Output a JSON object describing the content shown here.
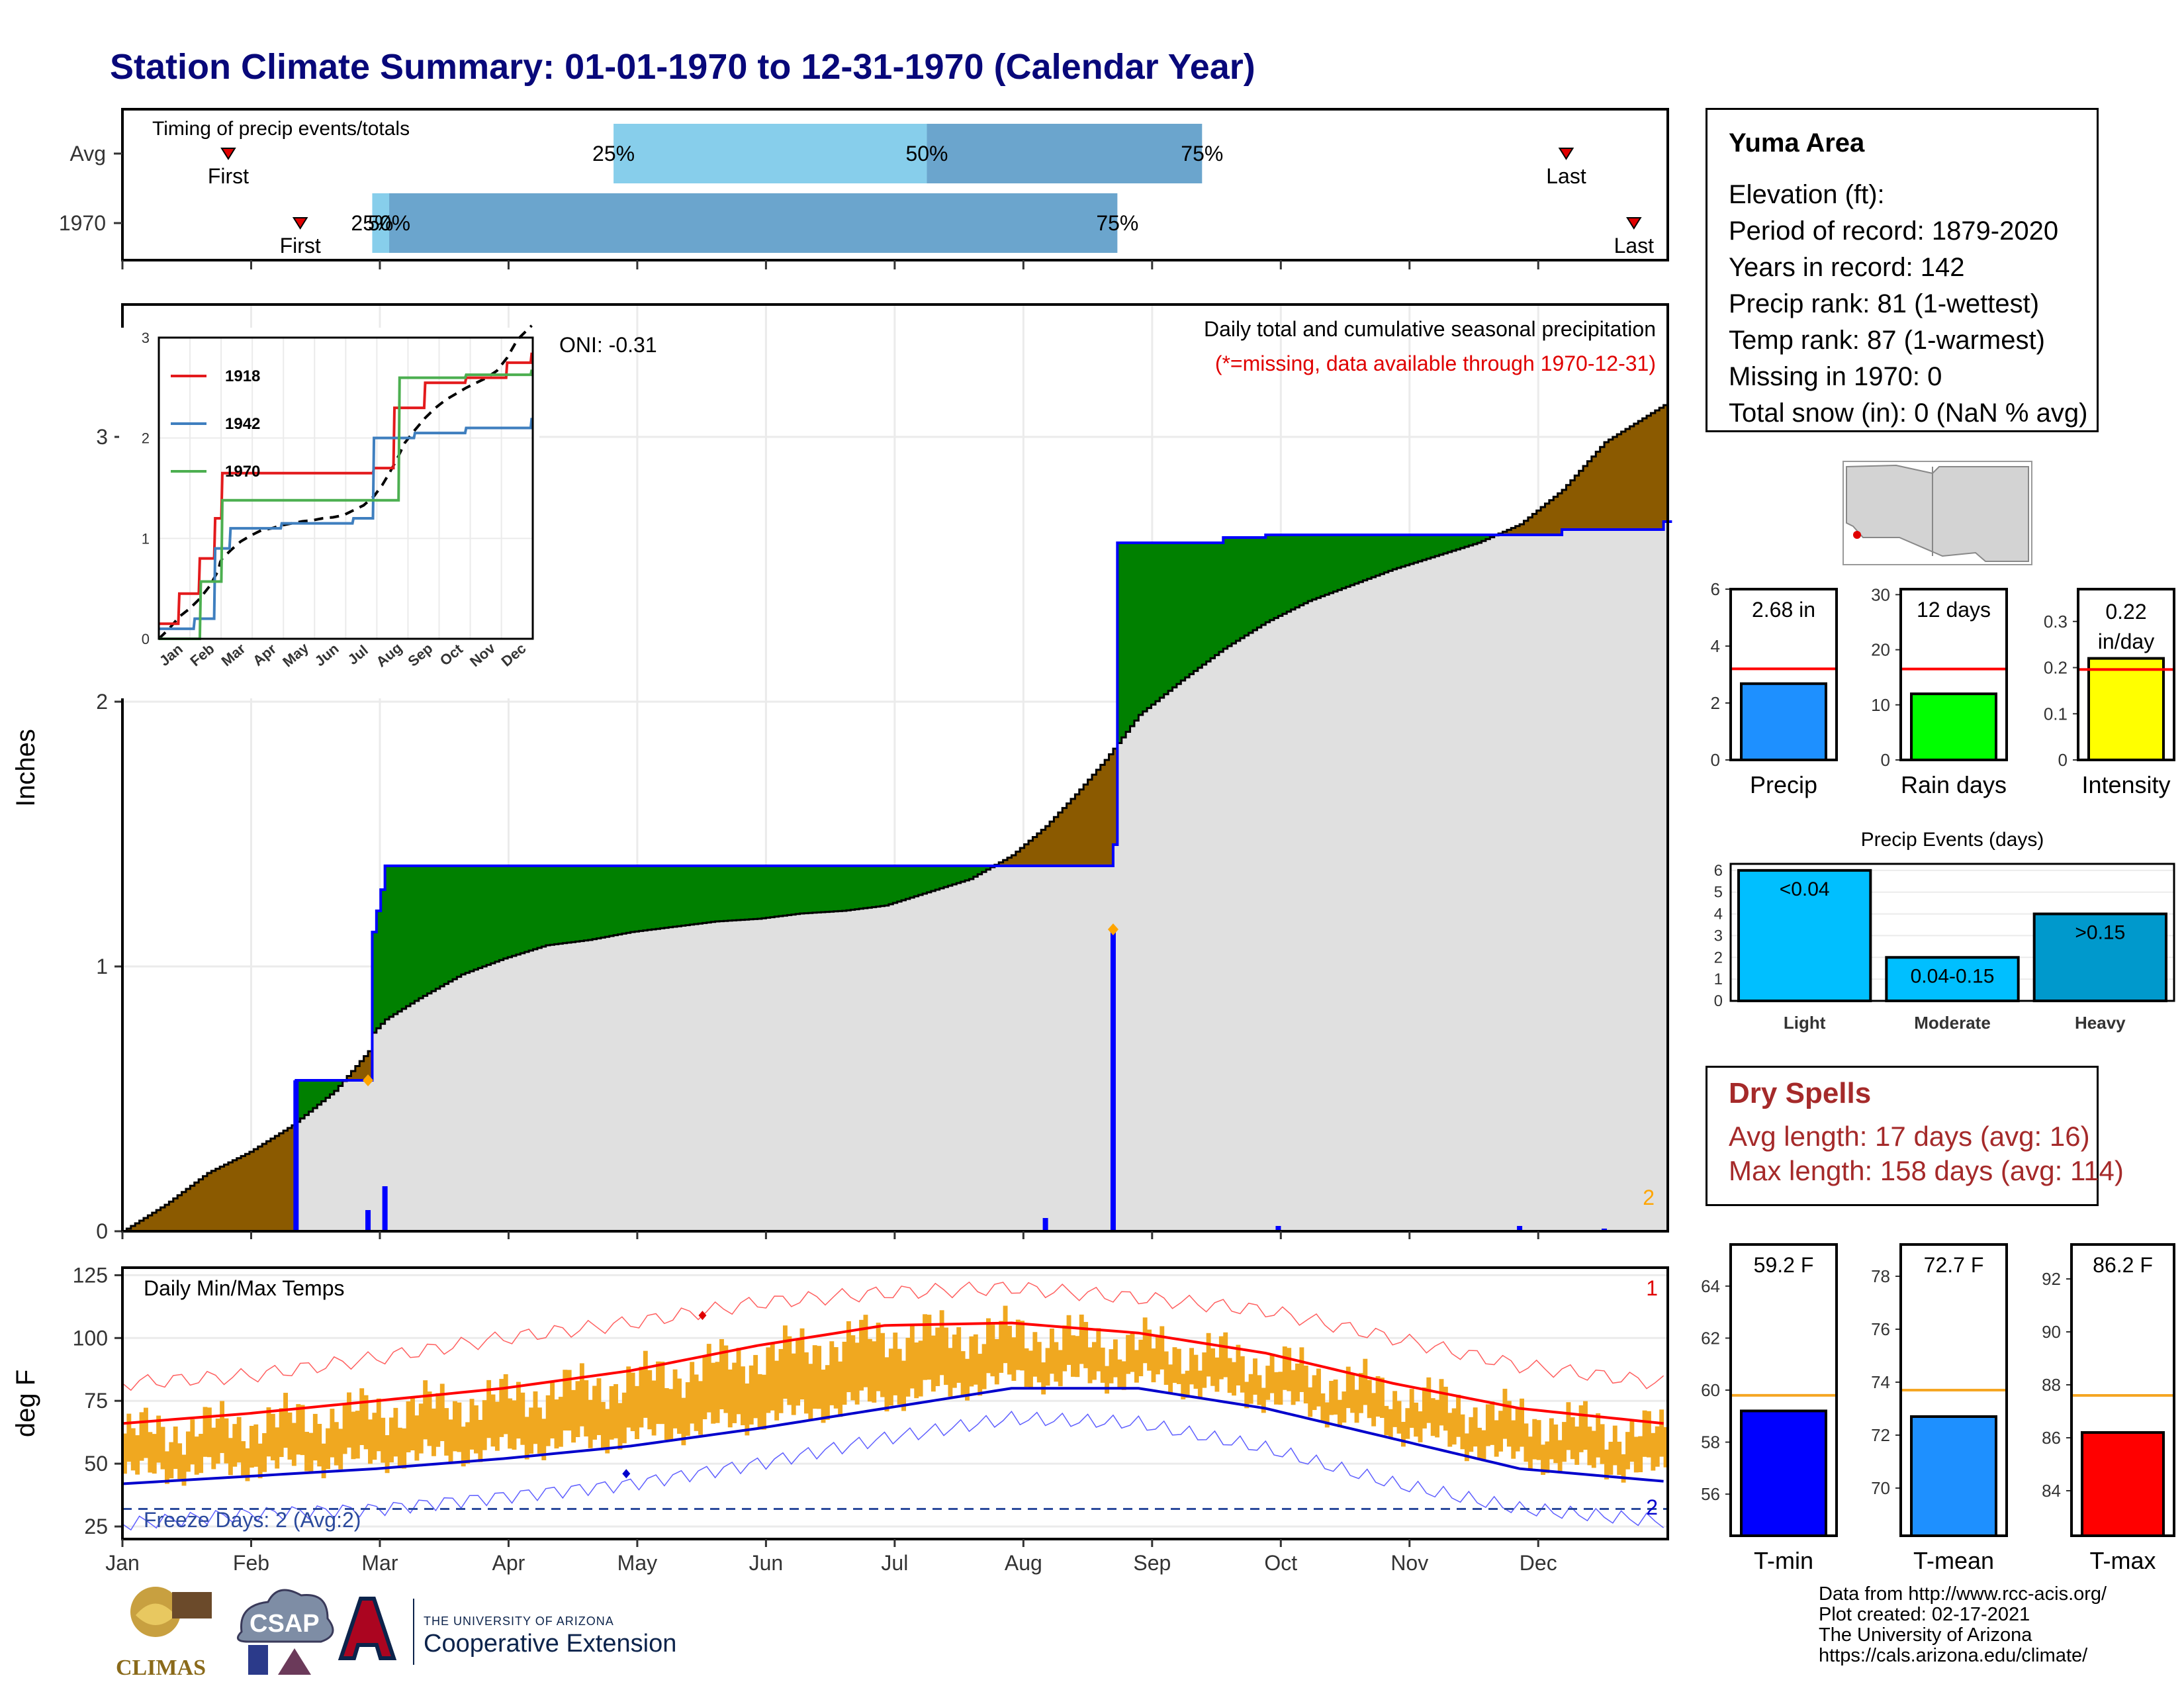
{
  "title": "Station Climate Summary: 01-01-1970 to 12-31-1970 (Calendar Year)",
  "timing": {
    "panel_title": "Timing of precip events/totals",
    "rows": [
      {
        "label": "Avg",
        "first_doy": 25,
        "last_doy": 341,
        "p25": 116,
        "p50": 190,
        "p75": 255,
        "labels": {
          "p25": "25%",
          "p50": "50%",
          "p75": "75%",
          "first": "First",
          "last": "Last"
        }
      },
      {
        "label": "1970",
        "first_doy": 42,
        "last_doy": 357,
        "p25": 59,
        "p50": 63,
        "p75": 235,
        "labels": {
          "p25": "25%",
          "p50": "50%",
          "p75": "75%",
          "first": "First",
          "last": "Last"
        }
      }
    ]
  },
  "chart_data": [
    {
      "type": "area",
      "name": "precip",
      "title": "Daily total and cumulative seasonal precipitation",
      "subtitle": "(*=missing, data available through 1970-12-31)",
      "ylabel": "Inches",
      "ylim": [
        0,
        3.5
      ],
      "yticks": [
        0,
        1,
        2,
        3
      ],
      "oni": "ONI: -0.31",
      "corner_count": "2",
      "months": [
        "Jan",
        "Feb",
        "Mar",
        "Apr",
        "May",
        "Jun",
        "Jul",
        "Aug",
        "Sep",
        "Oct",
        "Nov",
        "Dec"
      ],
      "avg_cumulative": [
        [
          0,
          0
        ],
        [
          10,
          0.1
        ],
        [
          20,
          0.22
        ],
        [
          30,
          0.3
        ],
        [
          40,
          0.4
        ],
        [
          50,
          0.53
        ],
        [
          58,
          0.68
        ],
        [
          59,
          0.75
        ],
        [
          62,
          0.8
        ],
        [
          70,
          0.88
        ],
        [
          80,
          0.97
        ],
        [
          90,
          1.03
        ],
        [
          100,
          1.08
        ],
        [
          110,
          1.1
        ],
        [
          120,
          1.13
        ],
        [
          130,
          1.15
        ],
        [
          140,
          1.17
        ],
        [
          150,
          1.18
        ],
        [
          160,
          1.2
        ],
        [
          170,
          1.21
        ],
        [
          180,
          1.23
        ],
        [
          190,
          1.28
        ],
        [
          200,
          1.33
        ],
        [
          210,
          1.42
        ],
        [
          218,
          1.53
        ],
        [
          225,
          1.65
        ],
        [
          232,
          1.78
        ],
        [
          240,
          1.95
        ],
        [
          250,
          2.08
        ],
        [
          260,
          2.2
        ],
        [
          270,
          2.3
        ],
        [
          280,
          2.38
        ],
        [
          290,
          2.44
        ],
        [
          300,
          2.5
        ],
        [
          310,
          2.55
        ],
        [
          320,
          2.6
        ],
        [
          330,
          2.67
        ],
        [
          340,
          2.8
        ],
        [
          350,
          2.98
        ],
        [
          364,
          3.12
        ]
      ],
      "cum_1970": [
        [
          0,
          0
        ],
        [
          41,
          0
        ],
        [
          41,
          0.57
        ],
        [
          58,
          0.57
        ],
        [
          59,
          1.13
        ],
        [
          60,
          1.21
        ],
        [
          61,
          1.29
        ],
        [
          62,
          1.38
        ],
        [
          210,
          1.38
        ],
        [
          220,
          1.38
        ],
        [
          234,
          1.46
        ],
        [
          235,
          2.6
        ],
        [
          260,
          2.62
        ],
        [
          270,
          2.63
        ],
        [
          300,
          2.63
        ],
        [
          330,
          2.63
        ],
        [
          340,
          2.65
        ],
        [
          364,
          2.68
        ]
      ],
      "daily_1970": [
        [
          41,
          0.57
        ],
        [
          58,
          0.08
        ],
        [
          62,
          0.17
        ],
        [
          218,
          0.05
        ],
        [
          234,
          1.14
        ],
        [
          273,
          0.02
        ],
        [
          330,
          0.02
        ],
        [
          350,
          0.01
        ]
      ],
      "series_colors": {
        "avg": "#000000",
        "year": "#0000ff",
        "above": "#008000",
        "below": "#8b5a00",
        "fill": "#e0e0e0"
      }
    },
    {
      "type": "line",
      "name": "inset_cumulative",
      "series": [
        {
          "name": "1918",
          "color": "#e31a1c",
          "values": [
            [
              0,
              0.15
            ],
            [
              20,
              0.45
            ],
            [
              40,
              0.8
            ],
            [
              55,
              1.2
            ],
            [
              62,
              1.65
            ],
            [
              120,
              1.65
            ],
            [
              210,
              1.7
            ],
            [
              230,
              2.3
            ],
            [
              260,
              2.55
            ],
            [
              300,
              2.6
            ],
            [
              340,
              2.75
            ],
            [
              364,
              2.85
            ]
          ]
        },
        {
          "name": "1942",
          "color": "#3f7fbf",
          "values": [
            [
              0,
              0.1
            ],
            [
              35,
              0.2
            ],
            [
              55,
              0.9
            ],
            [
              70,
              1.1
            ],
            [
              120,
              1.15
            ],
            [
              190,
              1.2
            ],
            [
              210,
              2.0
            ],
            [
              250,
              2.05
            ],
            [
              300,
              2.1
            ],
            [
              364,
              2.2
            ]
          ]
        },
        {
          "name": "1970",
          "color": "#4caf50",
          "values": [
            [
              0,
              0
            ],
            [
              41,
              0
            ],
            [
              41,
              0.57
            ],
            [
              58,
              0.57
            ],
            [
              62,
              1.38
            ],
            [
              220,
              1.38
            ],
            [
              235,
              2.6
            ],
            [
              300,
              2.63
            ],
            [
              364,
              2.68
            ]
          ]
        }
      ],
      "avg_line_color": "#000000",
      "ylim": [
        0,
        3
      ],
      "yticks": [
        0,
        1,
        2,
        3
      ],
      "xticks": [
        "Jan",
        "Feb",
        "Mar",
        "Apr",
        "May",
        "Jun",
        "Jul",
        "Aug",
        "Sep",
        "Oct",
        "Nov",
        "Dec"
      ]
    },
    {
      "type": "line",
      "name": "temps",
      "title": "Daily Min/Max Temps",
      "ylabel": "deg F",
      "ylim": [
        20,
        128
      ],
      "yticks": [
        25,
        50,
        75,
        100,
        125
      ],
      "avg_max": [
        [
          0,
          66
        ],
        [
          30,
          70
        ],
        [
          60,
          75
        ],
        [
          90,
          80
        ],
        [
          120,
          87
        ],
        [
          150,
          97
        ],
        [
          180,
          105
        ],
        [
          210,
          106
        ],
        [
          240,
          102
        ],
        [
          270,
          94
        ],
        [
          300,
          82
        ],
        [
          330,
          72
        ],
        [
          364,
          66
        ]
      ],
      "avg_min": [
        [
          0,
          42
        ],
        [
          30,
          45
        ],
        [
          60,
          48
        ],
        [
          90,
          52
        ],
        [
          120,
          57
        ],
        [
          150,
          64
        ],
        [
          180,
          72
        ],
        [
          210,
          80
        ],
        [
          240,
          80
        ],
        [
          270,
          72
        ],
        [
          300,
          60
        ],
        [
          330,
          48
        ],
        [
          364,
          43
        ]
      ],
      "record_max": [
        [
          0,
          82
        ],
        [
          30,
          85
        ],
        [
          60,
          92
        ],
        [
          90,
          100
        ],
        [
          120,
          106
        ],
        [
          150,
          114
        ],
        [
          180,
          118
        ],
        [
          210,
          120
        ],
        [
          240,
          116
        ],
        [
          270,
          111
        ],
        [
          300,
          100
        ],
        [
          330,
          89
        ],
        [
          364,
          82
        ]
      ],
      "record_min": [
        [
          0,
          26
        ],
        [
          30,
          30
        ],
        [
          60,
          32
        ],
        [
          90,
          37
        ],
        [
          120,
          42
        ],
        [
          150,
          50
        ],
        [
          180,
          60
        ],
        [
          210,
          68
        ],
        [
          240,
          66
        ],
        [
          270,
          56
        ],
        [
          300,
          42
        ],
        [
          330,
          32
        ],
        [
          364,
          27
        ]
      ],
      "freeze_line": 32,
      "freeze_label": "Freeze Days: 2 (Avg:2)",
      "freeze_count": "2",
      "record_count": "1",
      "colors": {
        "bars": "#f0a820",
        "max": "#ff0000",
        "min": "#0000cc",
        "record_max": "#ff6060",
        "record_min": "#6060ff",
        "freeze": "#2b4a9c"
      }
    },
    {
      "type": "bar",
      "name": "precip_total",
      "label": "Precip",
      "value_label": "2.68 in",
      "value": 2.68,
      "avg": 3.2,
      "ylim": [
        0,
        6
      ],
      "yticks": [
        0,
        2,
        4,
        6
      ],
      "color": "#1e90ff"
    },
    {
      "type": "bar",
      "name": "rain_days",
      "label": "Rain days",
      "value_label": "12 days",
      "value": 12,
      "avg": 16.5,
      "ylim": [
        0,
        31
      ],
      "yticks": [
        0,
        10,
        20,
        30
      ],
      "color": "#00ff00"
    },
    {
      "type": "bar",
      "name": "intensity",
      "label": "Intensity",
      "value_label": "0.22 in/day",
      "value": 0.22,
      "avg": 0.196,
      "ylim": [
        0,
        0.37
      ],
      "yticks": [
        0.0,
        0.1,
        0.2,
        0.3
      ],
      "color": "#ffff00"
    },
    {
      "type": "bar",
      "name": "precip_events",
      "title": "Precip Events (days)",
      "categories": [
        "Light",
        "Moderate",
        "Heavy"
      ],
      "values": [
        6,
        2,
        4
      ],
      "bar_labels": [
        "<0.04",
        "0.04-0.15",
        ">0.15"
      ],
      "ylim": [
        0,
        6.3
      ],
      "yticks": [
        0,
        1,
        2,
        3,
        4,
        5,
        6
      ],
      "colors": [
        "#00bfff",
        "#00bfff",
        "#0099cc"
      ]
    },
    {
      "type": "bar",
      "name": "tmin",
      "label": "T-min",
      "value_label": "59.2 F",
      "value": 59.2,
      "avg": 59.8,
      "ylim": [
        54.4,
        65.6
      ],
      "yticks": [
        56,
        58,
        60,
        62,
        64
      ],
      "color": "#0000ff"
    },
    {
      "type": "bar",
      "name": "tmean",
      "label": "T-mean",
      "value_label": "72.7 F",
      "value": 72.7,
      "avg": 73.7,
      "ylim": [
        68.2,
        79.2
      ],
      "yticks": [
        70,
        72,
        74,
        76,
        78
      ],
      "color": "#1e90ff"
    },
    {
      "type": "bar",
      "name": "tmax",
      "label": "T-max",
      "value_label": "86.2 F",
      "value": 86.2,
      "avg": 87.6,
      "ylim": [
        82.3,
        93.3
      ],
      "yticks": [
        84,
        86,
        88,
        90,
        92
      ],
      "color": "#ff0000"
    }
  ],
  "station": {
    "name": "Yuma Area",
    "rows": [
      "Elevation (ft):",
      "Period of record: 1879-2020",
      "Years in record: 142",
      "Precip rank: 81 (1-wettest)",
      "Temp rank: 87 (1-warmest)",
      "Missing in 1970: 0",
      "Total snow (in): 0 (NaN % avg)"
    ]
  },
  "dry_spells": {
    "title": "Dry Spells",
    "avg": "Avg length: 17 days (avg: 16)",
    "max": "Max length: 158 days (avg: 114)"
  },
  "footer": [
    "Data from http://www.rcc-acis.org/",
    "Plot created: 02-17-2021",
    "The University of Arizona",
    "https://cals.arizona.edu/climate/"
  ],
  "logos": {
    "climas": "CLIMAS",
    "csap": "CSAP",
    "ua_line1": "THE UNIVERSITY OF ARIZONA",
    "ua_line2": "Cooperative Extension"
  }
}
